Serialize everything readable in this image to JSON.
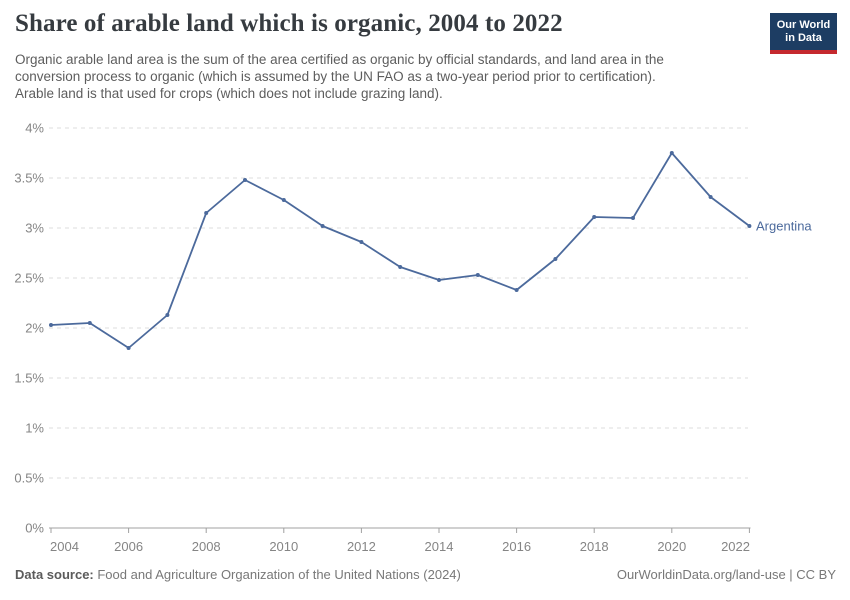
{
  "header": {
    "title": "Share of arable land which is organic, 2004 to 2022",
    "subtitle_lines": [
      "Organic arable land area is the sum of the area certified as organic by official standards, and land area in the",
      "conversion process to organic (which is assumed by the UN FAO as a two-year period prior to certification).",
      "Arable land is that used for crops (which does not include grazing land)."
    ],
    "logo_line1": "Our World",
    "logo_line2": "in Data"
  },
  "chart_data": {
    "type": "line",
    "title": "Share of arable land which is organic, 2004 to 2022",
    "x": [
      2004,
      2005,
      2006,
      2007,
      2008,
      2009,
      2010,
      2011,
      2012,
      2013,
      2014,
      2015,
      2016,
      2017,
      2018,
      2019,
      2020,
      2021,
      2022
    ],
    "series": [
      {
        "name": "Argentina",
        "color": "#4c6a9c",
        "values": [
          2.03,
          2.05,
          1.8,
          2.13,
          3.15,
          3.48,
          3.28,
          3.02,
          2.86,
          2.61,
          2.48,
          2.53,
          2.38,
          2.69,
          3.11,
          3.1,
          3.75,
          3.31,
          3.02
        ]
      }
    ],
    "xticks": [
      2004,
      2006,
      2008,
      2010,
      2012,
      2014,
      2016,
      2018,
      2020,
      2022
    ],
    "yticks": [
      {
        "value": 0,
        "label": "0%"
      },
      {
        "value": 0.5,
        "label": "0.5%"
      },
      {
        "value": 1,
        "label": "1%"
      },
      {
        "value": 1.5,
        "label": "1.5%"
      },
      {
        "value": 2,
        "label": "2%"
      },
      {
        "value": 2.5,
        "label": "2.5%"
      },
      {
        "value": 3,
        "label": "3%"
      },
      {
        "value": 3.5,
        "label": "3.5%"
      },
      {
        "value": 4,
        "label": "4%"
      }
    ],
    "xlim": [
      2004,
      2022
    ],
    "ylim": [
      0,
      4
    ],
    "xlabel": "",
    "ylabel": "",
    "grid": "horizontal-dashed",
    "legend": "label-at-line-end"
  },
  "footer": {
    "source_label": "Data source:",
    "source_value": " Food and Agriculture Organization of the United Nations (2024)",
    "link": "OurWorldinData.org/land-use | CC BY"
  },
  "colors": {
    "accent_line": "#4c6a9c",
    "logo_bg": "#1d3d63",
    "logo_stripe": "#c5292e",
    "grid": "#dedede",
    "axis": "#a0a0a0",
    "tick_text": "#858585",
    "title_text": "#363b40",
    "subtitle_text": "#5d5d5d",
    "footer_text": "#787878"
  }
}
